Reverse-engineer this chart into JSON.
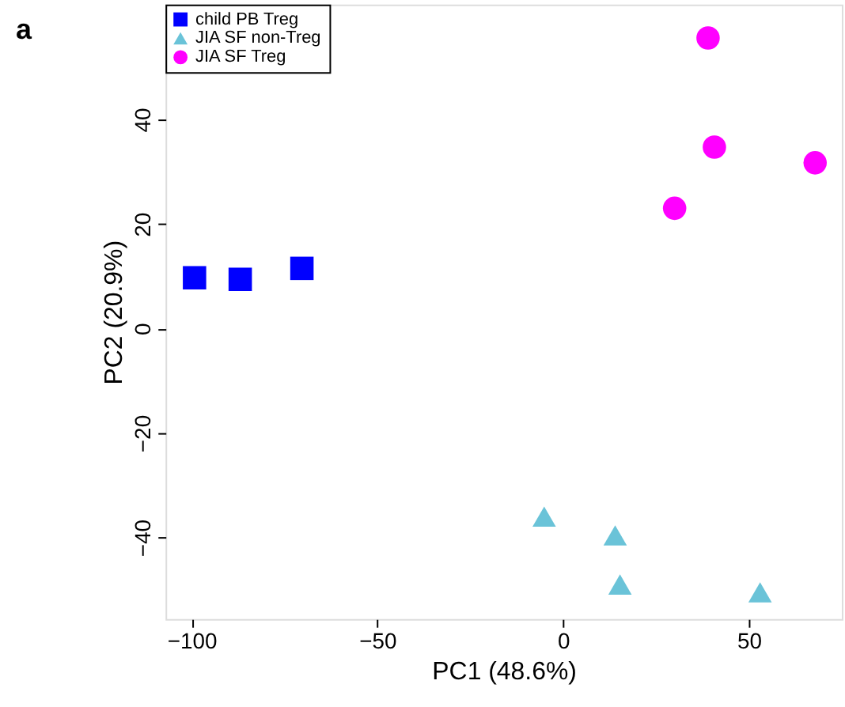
{
  "chart_data": {
    "type": "scatter",
    "xlabel": "PC1 (48.6%)",
    "ylabel": "PC2 (20.9%)",
    "annotations": [
      "a"
    ],
    "xlim": [
      -107,
      75
    ],
    "xticks": [
      -100,
      -50,
      0,
      50
    ],
    "ylim": [
      -55.6,
      62
    ],
    "yticks": [
      -40,
      -20,
      0,
      20,
      40
    ],
    "grid": false,
    "legend": "top left",
    "series": [
      {
        "name": "child PB Treg",
        "color": "#0000ff",
        "marker": "square",
        "x": [
          -99.2,
          -86.9,
          -70.3
        ],
        "values": [
          9.7,
          9.4,
          11.5
        ]
      },
      {
        "name": "JIA SF non-Treg",
        "color": "#6ac3d8",
        "marker": "triangle",
        "x": [
          -5.1,
          14,
          15.3,
          53
        ],
        "values": [
          -36,
          -39.6,
          -49,
          -50.5
        ]
      },
      {
        "name": "JIA SF Treg",
        "color": "#ff00ff",
        "marker": "circle",
        "x": [
          39,
          40.7,
          30,
          67.8
        ],
        "values": [
          55.6,
          34.7,
          23,
          31.7
        ]
      }
    ]
  }
}
